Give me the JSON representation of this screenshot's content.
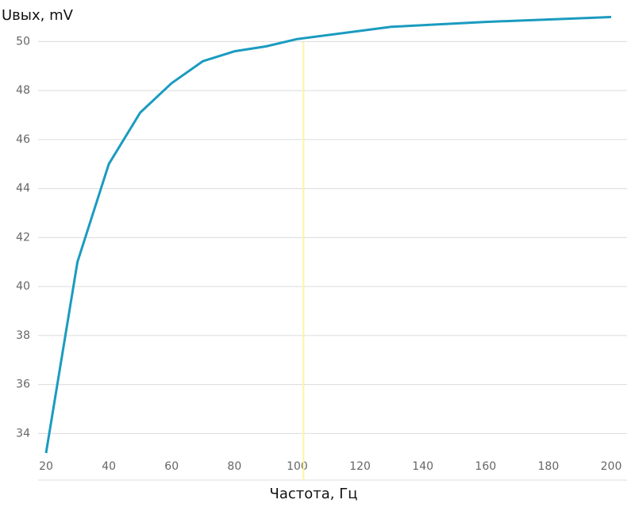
{
  "chart_data": {
    "type": "line",
    "y_label": "Uвых, mV",
    "x_label": "Частота, Гц",
    "x": [
      20,
      30,
      40,
      50,
      60,
      70,
      80,
      90,
      100,
      130,
      160,
      200
    ],
    "series": [
      {
        "color": "#1a9bc0",
        "values": [
          33.2,
          41,
          45,
          47.1,
          48.3,
          49.2,
          49.6,
          49.8,
          50.1,
          50.6,
          50.8,
          51.0
        ]
      }
    ],
    "xlim": [
      20,
      200
    ],
    "xticks": [
      20,
      40,
      60,
      80,
      100,
      120,
      140,
      160,
      180,
      200
    ],
    "ylim": [
      32.1,
      51.5
    ],
    "yticks": [
      34,
      36,
      38,
      40,
      42,
      44,
      46,
      48,
      50
    ],
    "grid": true,
    "reference_line": {
      "x": 102,
      "color": "#fff3a0"
    }
  }
}
